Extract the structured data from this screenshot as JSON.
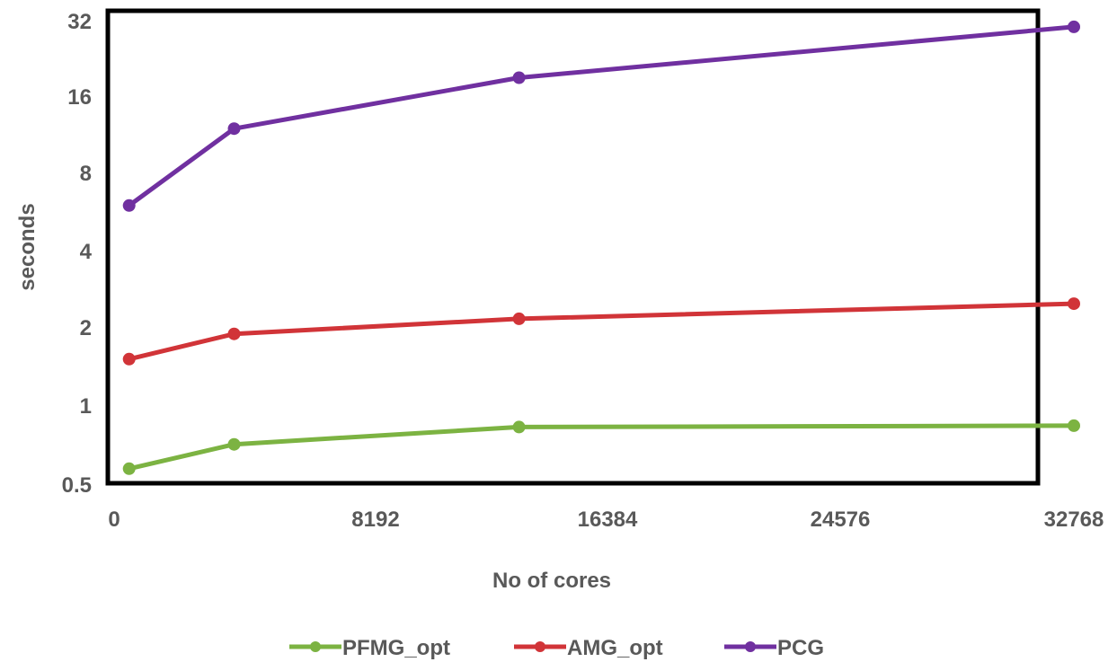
{
  "chart_data": {
    "type": "line",
    "title": "",
    "xlabel": "No of cores",
    "ylabel": "seconds",
    "x_ticks": [
      "0",
      "8192",
      "16384",
      "24576",
      "32768"
    ],
    "y_ticks": [
      "0.5",
      "1",
      "2",
      "4",
      "8",
      "16",
      "32"
    ],
    "xlim": [
      0,
      32768
    ],
    "ylim": [
      0.5,
      32
    ],
    "y_scale": "log2",
    "grid": false,
    "legend_position": "bottom",
    "x": [
      512,
      4096,
      13824,
      32768
    ],
    "series": [
      {
        "name": "PFMG_opt",
        "color": "#7cb342",
        "values": [
          0.57,
          0.71,
          0.83,
          0.84
        ]
      },
      {
        "name": "AMG_opt",
        "color": "#d13438",
        "values": [
          1.53,
          1.92,
          2.2,
          2.52
        ]
      },
      {
        "name": "PCG",
        "color": "#7030a0",
        "values": [
          6.1,
          12.2,
          19.3,
          30.5
        ]
      }
    ]
  }
}
